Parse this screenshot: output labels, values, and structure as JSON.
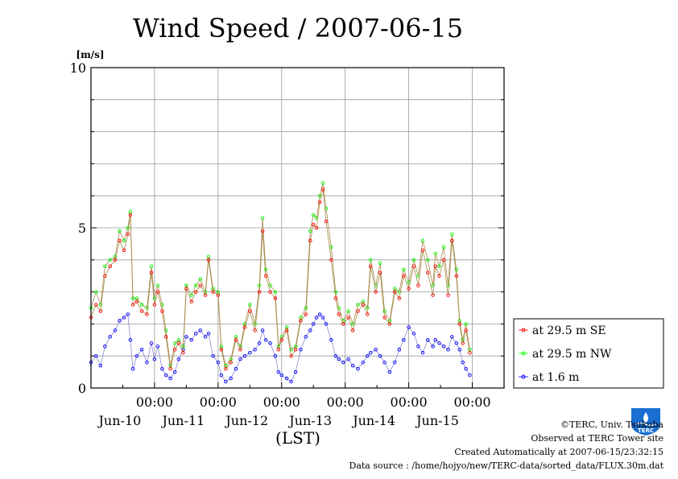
{
  "chart_data": {
    "type": "line",
    "title": "Wind Speed / 2007-06-15",
    "ylabel": "[m/s]",
    "xlabel": "(LST)",
    "ylim": [
      0,
      10
    ],
    "yticks": [
      {
        "value": 0,
        "label": "0"
      },
      {
        "value": 5,
        "label": "5"
      },
      {
        "value": 10,
        "label": "10"
      }
    ],
    "grid": true,
    "x_unit": "days since start of 2007-06-09 12:00 (LST)",
    "xlim": [
      0,
      6.5
    ],
    "xticks": [
      {
        "pos": 1.0,
        "time": "00:00",
        "date": "Jun-10"
      },
      {
        "pos": 2.0,
        "time": "00:00",
        "date": "Jun-11"
      },
      {
        "pos": 3.0,
        "time": "00:00",
        "date": "Jun-12"
      },
      {
        "pos": 4.0,
        "time": "00:00",
        "date": "Jun-13"
      },
      {
        "pos": 5.0,
        "time": "00:00",
        "date": "Jun-14"
      },
      {
        "pos": 6.0,
        "time": "00:00",
        "date": "Jun-15"
      }
    ],
    "legend_position": "right, outside plot",
    "series": [
      {
        "name": "at 29.5 m SE",
        "color": "#ff0000",
        "points": [
          [
            0.0,
            2.2
          ],
          [
            0.08,
            2.6
          ],
          [
            0.15,
            2.4
          ],
          [
            0.22,
            3.5
          ],
          [
            0.3,
            3.8
          ],
          [
            0.38,
            4.0
          ],
          [
            0.45,
            4.6
          ],
          [
            0.52,
            4.3
          ],
          [
            0.58,
            4.8
          ],
          [
            0.62,
            5.4
          ],
          [
            0.66,
            2.6
          ],
          [
            0.72,
            2.7
          ],
          [
            0.8,
            2.4
          ],
          [
            0.88,
            2.3
          ],
          [
            0.95,
            3.6
          ],
          [
            1.0,
            2.6
          ],
          [
            1.05,
            3.0
          ],
          [
            1.12,
            2.4
          ],
          [
            1.18,
            1.6
          ],
          [
            1.25,
            0.6
          ],
          [
            1.32,
            1.2
          ],
          [
            1.38,
            1.4
          ],
          [
            1.45,
            1.1
          ],
          [
            1.5,
            3.1
          ],
          [
            1.58,
            2.7
          ],
          [
            1.65,
            3.0
          ],
          [
            1.72,
            3.2
          ],
          [
            1.8,
            2.9
          ],
          [
            1.85,
            4.0
          ],
          [
            1.92,
            3.0
          ],
          [
            2.0,
            2.9
          ],
          [
            2.05,
            1.2
          ],
          [
            2.12,
            0.6
          ],
          [
            2.2,
            0.8
          ],
          [
            2.28,
            1.5
          ],
          [
            2.35,
            1.2
          ],
          [
            2.42,
            1.9
          ],
          [
            2.5,
            2.4
          ],
          [
            2.58,
            1.8
          ],
          [
            2.65,
            3.0
          ],
          [
            2.7,
            4.9
          ],
          [
            2.75,
            3.5
          ],
          [
            2.82,
            3.0
          ],
          [
            2.9,
            2.8
          ],
          [
            2.95,
            1.2
          ],
          [
            3.0,
            1.5
          ],
          [
            3.08,
            1.8
          ],
          [
            3.15,
            1.0
          ],
          [
            3.22,
            1.2
          ],
          [
            3.3,
            2.1
          ],
          [
            3.38,
            2.3
          ],
          [
            3.45,
            4.6
          ],
          [
            3.5,
            5.1
          ],
          [
            3.55,
            5.0
          ],
          [
            3.6,
            5.8
          ],
          [
            3.65,
            6.2
          ],
          [
            3.7,
            5.2
          ],
          [
            3.78,
            4.0
          ],
          [
            3.85,
            2.8
          ],
          [
            3.9,
            2.3
          ],
          [
            3.97,
            2.0
          ],
          [
            4.05,
            2.2
          ],
          [
            4.12,
            1.8
          ],
          [
            4.2,
            2.4
          ],
          [
            4.28,
            2.6
          ],
          [
            4.35,
            2.3
          ],
          [
            4.4,
            3.8
          ],
          [
            4.48,
            3.0
          ],
          [
            4.55,
            3.6
          ],
          [
            4.62,
            2.2
          ],
          [
            4.7,
            2.0
          ],
          [
            4.78,
            3.0
          ],
          [
            4.85,
            2.8
          ],
          [
            4.92,
            3.5
          ],
          [
            5.0,
            3.1
          ],
          [
            5.08,
            3.8
          ],
          [
            5.15,
            3.2
          ],
          [
            5.22,
            4.3
          ],
          [
            5.3,
            3.6
          ],
          [
            5.38,
            2.9
          ],
          [
            5.42,
            3.8
          ],
          [
            5.48,
            3.5
          ],
          [
            5.55,
            4.0
          ],
          [
            5.62,
            2.9
          ],
          [
            5.68,
            4.6
          ],
          [
            5.75,
            3.5
          ],
          [
            5.8,
            2.0
          ],
          [
            5.85,
            1.4
          ],
          [
            5.9,
            1.8
          ],
          [
            5.96,
            1.1
          ]
        ]
      },
      {
        "name": "at 29.5 m NW",
        "color": "#00ff00",
        "points": [
          [
            0.0,
            2.5
          ],
          [
            0.08,
            3.0
          ],
          [
            0.15,
            2.6
          ],
          [
            0.22,
            3.8
          ],
          [
            0.3,
            4.0
          ],
          [
            0.38,
            4.1
          ],
          [
            0.45,
            4.9
          ],
          [
            0.52,
            4.6
          ],
          [
            0.58,
            5.0
          ],
          [
            0.62,
            5.5
          ],
          [
            0.66,
            2.8
          ],
          [
            0.72,
            2.8
          ],
          [
            0.8,
            2.6
          ],
          [
            0.88,
            2.5
          ],
          [
            0.95,
            3.8
          ],
          [
            1.0,
            2.8
          ],
          [
            1.05,
            3.2
          ],
          [
            1.12,
            2.6
          ],
          [
            1.18,
            1.8
          ],
          [
            1.25,
            0.7
          ],
          [
            1.32,
            1.4
          ],
          [
            1.38,
            1.5
          ],
          [
            1.45,
            1.3
          ],
          [
            1.5,
            3.2
          ],
          [
            1.58,
            2.9
          ],
          [
            1.65,
            3.2
          ],
          [
            1.72,
            3.4
          ],
          [
            1.8,
            3.0
          ],
          [
            1.85,
            4.1
          ],
          [
            1.92,
            3.1
          ],
          [
            2.0,
            3.0
          ],
          [
            2.05,
            1.3
          ],
          [
            2.12,
            0.7
          ],
          [
            2.2,
            0.9
          ],
          [
            2.28,
            1.6
          ],
          [
            2.35,
            1.3
          ],
          [
            2.42,
            2.0
          ],
          [
            2.5,
            2.6
          ],
          [
            2.58,
            2.0
          ],
          [
            2.65,
            3.2
          ],
          [
            2.7,
            5.3
          ],
          [
            2.75,
            3.7
          ],
          [
            2.82,
            3.2
          ],
          [
            2.9,
            3.0
          ],
          [
            2.95,
            1.3
          ],
          [
            3.0,
            1.6
          ],
          [
            3.08,
            1.9
          ],
          [
            3.15,
            1.2
          ],
          [
            3.22,
            1.3
          ],
          [
            3.3,
            2.2
          ],
          [
            3.38,
            2.5
          ],
          [
            3.45,
            4.9
          ],
          [
            3.5,
            5.4
          ],
          [
            3.55,
            5.3
          ],
          [
            3.6,
            6.0
          ],
          [
            3.65,
            6.4
          ],
          [
            3.7,
            5.6
          ],
          [
            3.78,
            4.4
          ],
          [
            3.85,
            3.0
          ],
          [
            3.9,
            2.5
          ],
          [
            3.97,
            2.1
          ],
          [
            4.05,
            2.4
          ],
          [
            4.12,
            2.0
          ],
          [
            4.2,
            2.6
          ],
          [
            4.28,
            2.7
          ],
          [
            4.35,
            2.5
          ],
          [
            4.4,
            4.0
          ],
          [
            4.48,
            3.2
          ],
          [
            4.55,
            3.9
          ],
          [
            4.62,
            2.4
          ],
          [
            4.7,
            2.1
          ],
          [
            4.78,
            3.1
          ],
          [
            4.85,
            3.0
          ],
          [
            4.92,
            3.7
          ],
          [
            5.0,
            3.3
          ],
          [
            5.08,
            4.0
          ],
          [
            5.15,
            3.5
          ],
          [
            5.22,
            4.6
          ],
          [
            5.3,
            4.0
          ],
          [
            5.38,
            3.2
          ],
          [
            5.42,
            4.2
          ],
          [
            5.48,
            3.8
          ],
          [
            5.55,
            4.4
          ],
          [
            5.62,
            3.2
          ],
          [
            5.68,
            4.8
          ],
          [
            5.75,
            3.7
          ],
          [
            5.8,
            2.1
          ],
          [
            5.85,
            1.5
          ],
          [
            5.9,
            2.0
          ],
          [
            5.96,
            1.2
          ]
        ]
      },
      {
        "name": "at 1.6 m",
        "color": "#0000ff",
        "points": [
          [
            0.0,
            0.8
          ],
          [
            0.08,
            1.0
          ],
          [
            0.15,
            0.7
          ],
          [
            0.22,
            1.3
          ],
          [
            0.3,
            1.6
          ],
          [
            0.38,
            1.8
          ],
          [
            0.45,
            2.1
          ],
          [
            0.52,
            2.2
          ],
          [
            0.58,
            2.3
          ],
          [
            0.62,
            1.5
          ],
          [
            0.66,
            0.6
          ],
          [
            0.72,
            1.0
          ],
          [
            0.8,
            1.2
          ],
          [
            0.88,
            0.8
          ],
          [
            0.95,
            1.4
          ],
          [
            1.0,
            0.9
          ],
          [
            1.05,
            1.3
          ],
          [
            1.12,
            0.6
          ],
          [
            1.18,
            0.4
          ],
          [
            1.25,
            0.3
          ],
          [
            1.32,
            0.5
          ],
          [
            1.38,
            0.9
          ],
          [
            1.45,
            1.2
          ],
          [
            1.5,
            1.6
          ],
          [
            1.58,
            1.5
          ],
          [
            1.65,
            1.7
          ],
          [
            1.72,
            1.8
          ],
          [
            1.8,
            1.6
          ],
          [
            1.85,
            1.7
          ],
          [
            1.92,
            1.0
          ],
          [
            2.0,
            0.8
          ],
          [
            2.05,
            0.4
          ],
          [
            2.12,
            0.2
          ],
          [
            2.2,
            0.3
          ],
          [
            2.28,
            0.6
          ],
          [
            2.35,
            0.9
          ],
          [
            2.42,
            1.0
          ],
          [
            2.5,
            1.1
          ],
          [
            2.58,
            1.2
          ],
          [
            2.65,
            1.4
          ],
          [
            2.7,
            1.8
          ],
          [
            2.75,
            1.5
          ],
          [
            2.82,
            1.4
          ],
          [
            2.9,
            1.0
          ],
          [
            2.95,
            0.5
          ],
          [
            3.0,
            0.4
          ],
          [
            3.08,
            0.3
          ],
          [
            3.15,
            0.2
          ],
          [
            3.22,
            0.5
          ],
          [
            3.3,
            1.2
          ],
          [
            3.38,
            1.6
          ],
          [
            3.45,
            1.8
          ],
          [
            3.5,
            2.0
          ],
          [
            3.55,
            2.2
          ],
          [
            3.6,
            2.3
          ],
          [
            3.65,
            2.2
          ],
          [
            3.7,
            2.0
          ],
          [
            3.78,
            1.5
          ],
          [
            3.85,
            1.0
          ],
          [
            3.9,
            0.9
          ],
          [
            3.97,
            0.8
          ],
          [
            4.05,
            0.9
          ],
          [
            4.12,
            0.7
          ],
          [
            4.2,
            0.6
          ],
          [
            4.28,
            0.8
          ],
          [
            4.35,
            1.0
          ],
          [
            4.4,
            1.1
          ],
          [
            4.48,
            1.2
          ],
          [
            4.55,
            1.0
          ],
          [
            4.62,
            0.8
          ],
          [
            4.7,
            0.5
          ],
          [
            4.78,
            0.8
          ],
          [
            4.85,
            1.2
          ],
          [
            4.92,
            1.5
          ],
          [
            5.0,
            1.9
          ],
          [
            5.08,
            1.7
          ],
          [
            5.15,
            1.3
          ],
          [
            5.22,
            1.1
          ],
          [
            5.3,
            1.5
          ],
          [
            5.38,
            1.3
          ],
          [
            5.42,
            1.5
          ],
          [
            5.48,
            1.4
          ],
          [
            5.55,
            1.3
          ],
          [
            5.62,
            1.2
          ],
          [
            5.68,
            1.6
          ],
          [
            5.75,
            1.4
          ],
          [
            5.8,
            1.2
          ],
          [
            5.85,
            0.8
          ],
          [
            5.9,
            0.6
          ],
          [
            5.96,
            0.4
          ]
        ]
      }
    ]
  },
  "credits": {
    "copyright": "©TERC, Univ. Tsukuba",
    "observed": "Observed at TERC Tower site",
    "created": "Created Automatically at 2007-06-15/23:32:15",
    "source": "Data source : /home/hojyo/new/TERC-data/sorted_data/FLUX.30m.dat"
  },
  "logo": {
    "text": "TERC",
    "color": "#1a6fd0"
  }
}
